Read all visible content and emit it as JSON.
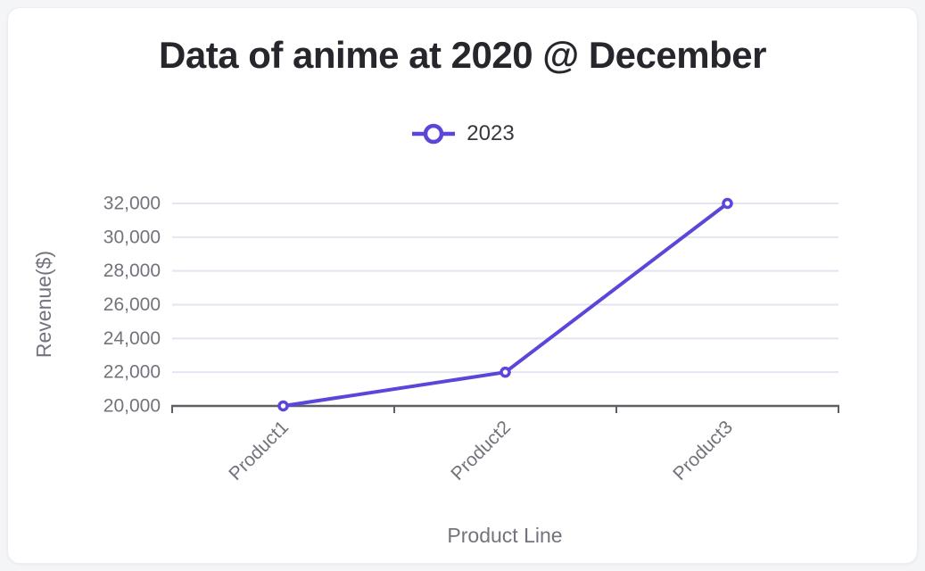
{
  "chart_data": {
    "type": "line",
    "title": "Data of anime at 2020 @ December",
    "categories": [
      "Product1",
      "Product2",
      "Product3"
    ],
    "series": [
      {
        "name": "2023",
        "color": "#5A46D8",
        "values": [
          20000,
          22000,
          32000
        ]
      }
    ],
    "xlabel": "Product Line",
    "ylabel": "Revenue($)",
    "ylim": [
      20000,
      32000
    ],
    "ytick_step": 2000,
    "ytick_labels": [
      "20,000",
      "22,000",
      "24,000",
      "26,000",
      "28,000",
      "30,000",
      "32,000"
    ],
    "grid": "horizontal-only",
    "legend_position": "top-center",
    "marker": "open-circle",
    "x_label_rotation_deg": -45,
    "colors": {
      "line": "#5A46D8",
      "marker_fill": "#ffffff",
      "gridline": "#e3e5f1",
      "axis_line": "#5f5f66",
      "tick_label": "#72727c",
      "axis_title": "#73737d",
      "title_text": "#26262c",
      "legend_text": "#37373d",
      "card_background": "#ffffff",
      "page_background": "#f4f5f7"
    }
  }
}
